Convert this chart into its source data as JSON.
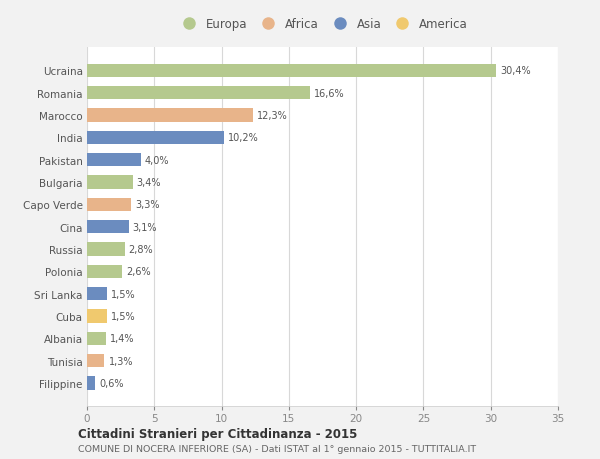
{
  "countries": [
    "Ucraina",
    "Romania",
    "Marocco",
    "India",
    "Pakistan",
    "Bulgaria",
    "Capo Verde",
    "Cina",
    "Russia",
    "Polonia",
    "Sri Lanka",
    "Cuba",
    "Albania",
    "Tunisia",
    "Filippine"
  ],
  "values": [
    30.4,
    16.6,
    12.3,
    10.2,
    4.0,
    3.4,
    3.3,
    3.1,
    2.8,
    2.6,
    1.5,
    1.5,
    1.4,
    1.3,
    0.6
  ],
  "labels": [
    "30,4%",
    "16,6%",
    "12,3%",
    "10,2%",
    "4,0%",
    "3,4%",
    "3,3%",
    "3,1%",
    "2,8%",
    "2,6%",
    "1,5%",
    "1,5%",
    "1,4%",
    "1,3%",
    "0,6%"
  ],
  "continents": [
    "Europa",
    "Europa",
    "Africa",
    "Asia",
    "Asia",
    "Europa",
    "Africa",
    "Asia",
    "Europa",
    "Europa",
    "Asia",
    "America",
    "Europa",
    "Africa",
    "Asia"
  ],
  "colors": {
    "Europa": "#b5c98e",
    "Africa": "#e8b48a",
    "Asia": "#6b8cbf",
    "America": "#f0c96e"
  },
  "legend_order": [
    "Europa",
    "Africa",
    "Asia",
    "America"
  ],
  "xlim": [
    0,
    35
  ],
  "xticks": [
    0,
    5,
    10,
    15,
    20,
    25,
    30,
    35
  ],
  "title": "Cittadini Stranieri per Cittadinanza - 2015",
  "subtitle": "COMUNE DI NOCERA INFERIORE (SA) - Dati ISTAT al 1° gennaio 2015 - TUTTITALIA.IT",
  "background_color": "#f2f2f2",
  "plot_background": "#ffffff",
  "grid_color": "#d8d8d8",
  "bar_height": 0.6
}
